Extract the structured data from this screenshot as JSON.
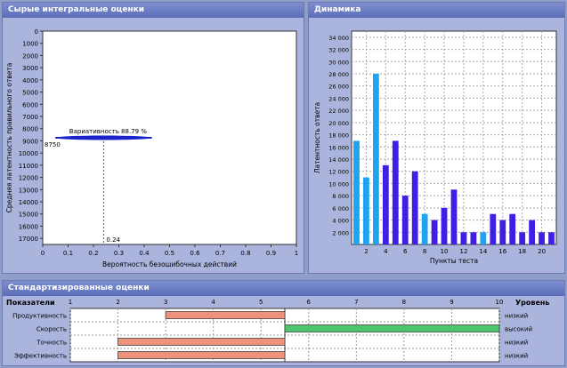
{
  "panels": {
    "raw": {
      "title": "Сырые интегральные оценки"
    },
    "dynamics": {
      "title": "Динамика"
    },
    "std": {
      "title": "Стандартизированные оценки"
    }
  },
  "chart_data": [
    {
      "type": "scatter",
      "title": "",
      "xlabel": "Вероятность безошибочных действий",
      "ylabel": "Средняя латентность правильного ответа",
      "x_ticks": [
        "0",
        "0.1",
        "0.2",
        "0.3",
        "0.4",
        "0.5",
        "0.6",
        "0.7",
        "0.8",
        "0.9",
        "1"
      ],
      "xlim": [
        0,
        1
      ],
      "y_ticks": [
        "0",
        "1000",
        "2000",
        "3000",
        "4000",
        "5000",
        "6000",
        "7000",
        "8000",
        "9000",
        "10000",
        "11000",
        "12000",
        "13000",
        "14000",
        "15000",
        "16000",
        "17000"
      ],
      "ylim": [
        0,
        17500
      ],
      "y_reversed": true,
      "point": {
        "x": 0.24,
        "y": 8750,
        "x_label": "0.24",
        "y_label": "8750"
      },
      "annotation": "Вариативность 88.79 %",
      "variability_bar": {
        "from": 0.05,
        "to": 0.43
      },
      "color": "#1a22c8",
      "grid": false
    },
    {
      "type": "bar",
      "title": "",
      "xlabel": "Пункты теста",
      "ylabel": "Латентность ответа",
      "categories": [
        1,
        2,
        3,
        4,
        5,
        6,
        7,
        8,
        9,
        10,
        11,
        12,
        13,
        14,
        15,
        16,
        17,
        18,
        19,
        20,
        21
      ],
      "values": [
        17000,
        11000,
        28000,
        13000,
        17000,
        8000,
        12000,
        5000,
        4000,
        6000,
        9000,
        2000,
        2000,
        2000,
        5000,
        4000,
        5000,
        2000,
        4000,
        2000,
        2000
      ],
      "highlight": [
        true,
        true,
        true,
        false,
        false,
        false,
        false,
        true,
        false,
        false,
        false,
        false,
        false,
        true,
        false,
        false,
        false,
        false,
        false,
        false,
        false
      ],
      "colors": {
        "normal": "#3f1ee6",
        "highlight": "#1ea3f0"
      },
      "x_ticks": [
        "2",
        "4",
        "6",
        "8",
        "10",
        "12",
        "14",
        "16",
        "18",
        "20"
      ],
      "y_ticks": [
        "2 000",
        "4 000",
        "6 000",
        "8 000",
        "10 000",
        "12 000",
        "14 000",
        "16 000",
        "18 000",
        "20 000",
        "22 000",
        "24 000",
        "26 000",
        "28 000",
        "30 000",
        "32 000",
        "34 000"
      ],
      "ylim": [
        0,
        35000
      ],
      "grid": true
    },
    {
      "type": "bar",
      "orientation": "horizontal",
      "title": "",
      "header_left": "Показатели",
      "header_right": "Уровень",
      "x_ticks": [
        "1",
        "2",
        "3",
        "4",
        "5",
        "6",
        "7",
        "8",
        "9",
        "10"
      ],
      "xlim": [
        1,
        10
      ],
      "midline": 5.5,
      "rows": [
        {
          "label": "Продуктивность",
          "from": 3.0,
          "to": 5.5,
          "level": "низкий",
          "color": "#f0917b"
        },
        {
          "label": "Скорость",
          "from": 5.5,
          "to": 10.0,
          "level": "высокий",
          "color": "#4fc46e"
        },
        {
          "label": "Точность",
          "from": 2.0,
          "to": 5.5,
          "level": "низкий",
          "color": "#f0917b"
        },
        {
          "label": "Эффективность",
          "from": 2.0,
          "to": 5.5,
          "level": "низкий",
          "color": "#f0917b"
        }
      ]
    }
  ]
}
